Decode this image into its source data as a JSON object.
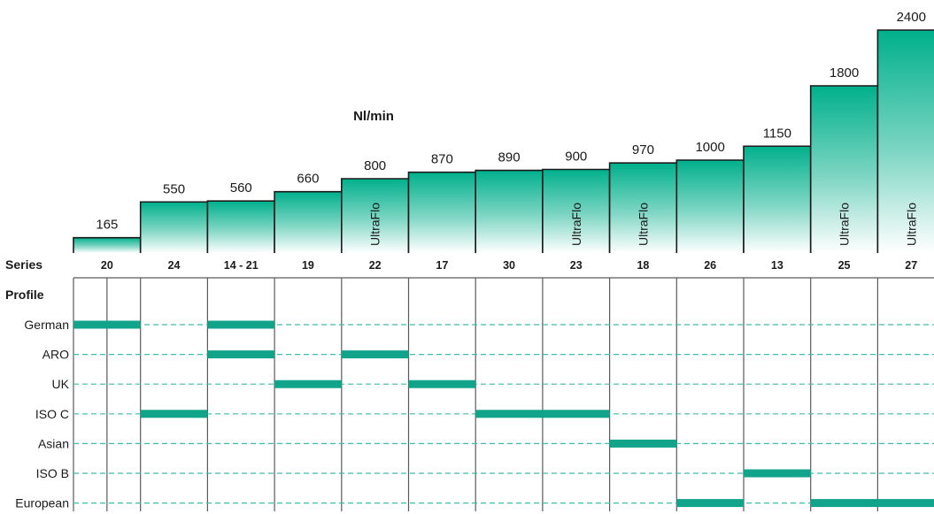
{
  "chart_data": {
    "type": "bar",
    "title": "Nl/min",
    "series_label": "Series",
    "profile_label": "Profile",
    "categories": [
      "20",
      "24",
      "14  -  21",
      "19",
      "22",
      "17",
      "30",
      "23",
      "18",
      "26",
      "13",
      "25",
      "27"
    ],
    "values": [
      165,
      550,
      560,
      660,
      800,
      870,
      890,
      900,
      970,
      1000,
      1150,
      1800,
      2400
    ],
    "bar_notes": [
      "",
      "",
      "",
      "",
      "UltraFlo",
      "",
      "",
      "UltraFlo",
      "UltraFlo",
      "",
      "",
      "UltraFlo",
      "UltraFlo"
    ],
    "profiles": [
      "German",
      "ARO",
      "UK",
      "ISO C",
      "Asian",
      "ISO B",
      "European"
    ],
    "compatibility": [
      {
        "profile": "German",
        "series": [
          "20",
          "14  -  21"
        ]
      },
      {
        "profile": "ARO",
        "series": [
          "14  -  21",
          "22"
        ]
      },
      {
        "profile": "UK",
        "series": [
          "19",
          "17"
        ]
      },
      {
        "profile": "ISO C",
        "series": [
          "24",
          "30",
          "23"
        ]
      },
      {
        "profile": "Asian",
        "series": [
          "18"
        ]
      },
      {
        "profile": "ISO B",
        "series": [
          "13"
        ]
      },
      {
        "profile": "European",
        "series": [
          "26",
          "25",
          "27"
        ]
      }
    ],
    "ylim": [
      0,
      2400
    ],
    "grid": false,
    "legend": "none",
    "colors": {
      "bar_top": "#00b08c",
      "bar_bottom": "#ffffff",
      "bar_outline": "#1a1a1a",
      "marker": "#12a48a",
      "dash": "#3bbfa6",
      "divider": "#5a5a5a"
    }
  }
}
